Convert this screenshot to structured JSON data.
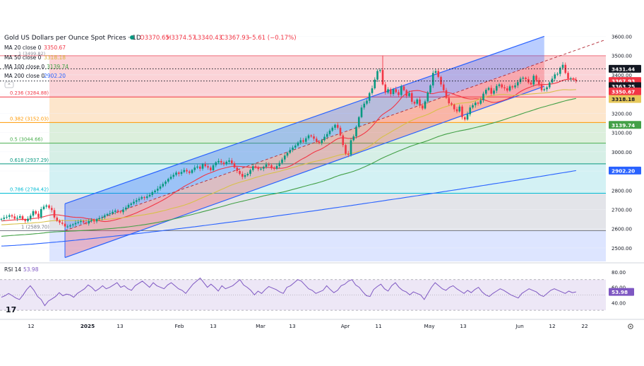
{
  "header": {
    "title": "Gold US Dollars per Ounce Spot Prices · 1D",
    "open": "O3370.65",
    "high": "H3374.57",
    "low": "L3340.43",
    "close": "C3367.93",
    "change": "−5.61 (−0.17%)"
  },
  "legend": [
    {
      "label": "MA 20 close 0",
      "value": "3350.67",
      "color": "#f23645"
    },
    {
      "label": "MA 50 close 0",
      "value": "3318.18",
      "color": "#d8c04a"
    },
    {
      "label": "MA 100 close 0",
      "value": "3139.74",
      "color": "#43a047"
    },
    {
      "label": "MA 200 close 0",
      "value": "2902.20",
      "color": "#2962ff"
    }
  ],
  "fib_badge": "1 (3499.82)",
  "price_badges": [
    {
      "text": "3431.44",
      "value": 3431.44,
      "bg": "#131722"
    },
    {
      "text": "3367.93",
      "value": 3367.93,
      "bg": "#f23645"
    },
    {
      "text": "3363.25",
      "value": 3363.25,
      "bg": "#131722"
    },
    {
      "text": "3350.67",
      "value": 3350.67,
      "bg": "#f23645"
    },
    {
      "text": "3318.18",
      "value": 3318.18,
      "bg": "#e7c95c"
    },
    {
      "text": "3139.74",
      "value": 3139.74,
      "bg": "#43a047"
    },
    {
      "text": "2902.20",
      "value": 2902.2,
      "bg": "#2962ff"
    }
  ],
  "rsi": {
    "label": "RSI 14",
    "value": "53.98",
    "ticks": [
      "80.00",
      "60.00",
      "40.00"
    ],
    "tick_values": [
      80,
      60,
      40
    ],
    "upper": 70,
    "lower": 30,
    "values": [
      47,
      49,
      52,
      49,
      46,
      44,
      50,
      57,
      62,
      56,
      48,
      44,
      36,
      42,
      45,
      48,
      53,
      49,
      51,
      50,
      47,
      52,
      55,
      58,
      63,
      60,
      55,
      58,
      62,
      58,
      60,
      63,
      66,
      60,
      62,
      58,
      56,
      62,
      65,
      68,
      64,
      60,
      66,
      62,
      60,
      58,
      63,
      66,
      62,
      58,
      56,
      52,
      58,
      64,
      68,
      72,
      66,
      60,
      64,
      60,
      55,
      62,
      58,
      60,
      62,
      66,
      70,
      63,
      60,
      56,
      50,
      55,
      52,
      57,
      61,
      59,
      57,
      54,
      52,
      60,
      62,
      66,
      70,
      68,
      63,
      58,
      56,
      52,
      54,
      56,
      62,
      57,
      53,
      56,
      62,
      64,
      68,
      70,
      63,
      60,
      54,
      49,
      48,
      57,
      61,
      64,
      58,
      55,
      62,
      66,
      60,
      56,
      54,
      50,
      54,
      52,
      50,
      44,
      52,
      60,
      66,
      62,
      58,
      56,
      60,
      62,
      58,
      55,
      52,
      56,
      53,
      57,
      60,
      54,
      50,
      48,
      52,
      55,
      58,
      56,
      53,
      50,
      48,
      46,
      52,
      55,
      58,
      56,
      54,
      50,
      48,
      52,
      56,
      58,
      56,
      54,
      52,
      55,
      53,
      54
    ]
  },
  "x_axis": {
    "labels": [
      "12",
      "2025",
      "13",
      "Feb",
      "13",
      "Mar",
      "13",
      "Apr",
      "11",
      "May",
      "13",
      "Jun",
      "12",
      "22"
    ],
    "bold": [
      "2025"
    ]
  },
  "chart_data": {
    "type": "candlestick",
    "title": "Gold US Dollars per Ounce Spot Prices · 1D",
    "ylim": [
      2430,
      3620
    ],
    "y_ticks": [
      2500,
      2600,
      2700,
      2800,
      2900,
      3000,
      3100,
      3200,
      3300,
      3400,
      3500,
      3600
    ],
    "y_tick_labels": [
      "2500.00",
      "2600.00",
      "2700.00",
      "2800.00",
      "2900.00",
      "3000.00",
      "3100.00",
      "3200.00",
      "3300.00",
      "3400.00",
      "3500.00",
      "3600.00"
    ],
    "fib_levels": [
      {
        "ratio": "0.236",
        "value": 3284.88,
        "label": "0.236 (3284.88)"
      },
      {
        "ratio": "0.382",
        "value": 3152.03,
        "label": "0.382 (3152.03)"
      },
      {
        "ratio": "0.5",
        "value": 3044.66,
        "label": "0.5 (3044.66)"
      },
      {
        "ratio": "0.618",
        "value": 2937.29,
        "label": "0.618 (2937.29)"
      },
      {
        "ratio": "0.786",
        "value": 2784.42,
        "label": "0.786 (2784.42)"
      },
      {
        "ratio": "1",
        "value": 2589.7,
        "label": "1 (2589.70)"
      }
    ],
    "fib_top": 3499.82,
    "channel": {
      "start_index": 24,
      "end_index": 205,
      "lower_start": 2450,
      "lower_end": 3340,
      "upper_start": 2730,
      "upper_end": 3600
    },
    "closes": [
      2651,
      2658,
      2662,
      2670,
      2664,
      2652,
      2657,
      2665,
      2648,
      2640,
      2652,
      2668,
      2691,
      2678,
      2660,
      2702,
      2715,
      2721,
      2708,
      2697,
      2658,
      2642,
      2632,
      2626,
      2612,
      2612,
      2618,
      2623,
      2630,
      2635,
      2640,
      2633,
      2627,
      2640,
      2645,
      2638,
      2650,
      2655,
      2659,
      2670,
      2676,
      2680,
      2688,
      2694,
      2690,
      2686,
      2700,
      2710,
      2724,
      2731,
      2740,
      2748,
      2756,
      2764,
      2760,
      2768,
      2776,
      2790,
      2798,
      2808,
      2820,
      2833,
      2845,
      2859,
      2870,
      2880,
      2892,
      2885,
      2895,
      2905,
      2898,
      2890,
      2905,
      2918,
      2923,
      2912,
      2935,
      2925,
      2918,
      2904,
      2930,
      2945,
      2952,
      2944,
      2935,
      2948,
      2955,
      2940,
      2918,
      2900,
      2885,
      2870,
      2878,
      2885,
      2905,
      2925,
      2918,
      2910,
      2912,
      2922,
      2934,
      2930,
      2918,
      2912,
      2926,
      2942,
      2960,
      2980,
      2995,
      3010,
      3022,
      3032,
      3048,
      3060,
      3052,
      3070,
      3085,
      3080,
      3068,
      3052,
      3045,
      3060,
      3078,
      3092,
      3110,
      3125,
      3140,
      3125,
      3085,
      3035,
      2990,
      2985,
      3060,
      3080,
      3130,
      3180,
      3230,
      3250,
      3265,
      3305,
      3330,
      3375,
      3420,
      3425,
      3350,
      3308,
      3325,
      3300,
      3325,
      3310,
      3295,
      3340,
      3320,
      3290,
      3305,
      3260,
      3250,
      3272,
      3240,
      3225,
      3262,
      3308,
      3345,
      3410,
      3420,
      3389,
      3350,
      3320,
      3280,
      3252,
      3245,
      3221,
      3210,
      3235,
      3180,
      3168,
      3195,
      3230,
      3242,
      3255,
      3250,
      3268,
      3302,
      3322,
      3332,
      3302,
      3318,
      3342,
      3350,
      3335,
      3330,
      3318,
      3340,
      3335,
      3345,
      3362,
      3380,
      3385,
      3378,
      3360,
      3350,
      3395,
      3372,
      3352,
      3320,
      3325,
      3335,
      3360,
      3380,
      3402,
      3405,
      3436,
      3452,
      3410,
      3380,
      3382,
      3375,
      3368
    ],
    "ma20": {
      "label": "MA 20 close 0",
      "value": 3350.67
    },
    "ma50": {
      "label": "MA 50 close 0",
      "value": 3318.18
    },
    "ma100": {
      "label": "MA 100 close 0",
      "value": 3139.74
    },
    "ma200": {
      "label": "MA 200 close 0",
      "value": 2902.2
    }
  }
}
